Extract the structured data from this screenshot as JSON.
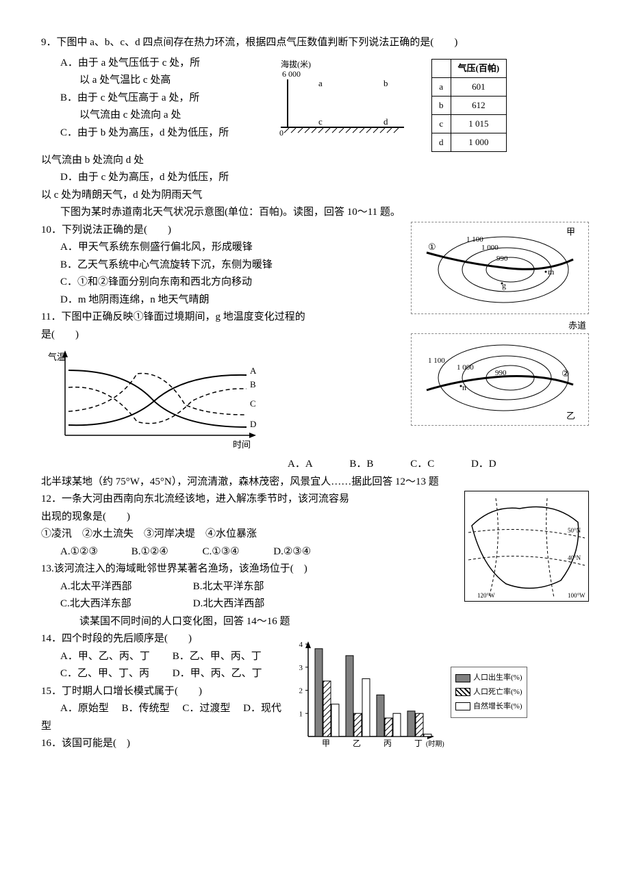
{
  "q9": {
    "stem": "9．下图中 a、b、c、d 四点间存在热力环流，根据四点气压数值判断下列说法正确的是(　　)",
    "A1": "A．由于 a 处气压低于 c 处，所",
    "A2": "以 a 处气温比 c 处高",
    "B1": "B．由于 c 处气压高于 a 处，所",
    "B2": "以气流由 c 处流向 a 处",
    "C1": "C．由于 b 处为高压，d 处为低压，所",
    "C2": "以气流由 b 处流向 d 处",
    "D1": "D．由于 c 处为高压，d 处为低压，所",
    "D2": "以 c 处为晴朗天气，d 处为阴雨天气",
    "diagram": {
      "ylabel": "海拔(米)",
      "ytick": "6 000",
      "zero": "0",
      "points": [
        "a",
        "b",
        "c",
        "d"
      ]
    },
    "table": {
      "header": [
        "",
        "气压(百帕)"
      ],
      "rows": [
        [
          "a",
          "601"
        ],
        [
          "b",
          "612"
        ],
        [
          "c",
          "1 015"
        ],
        [
          "d",
          "1 000"
        ]
      ]
    }
  },
  "intro1011": "下图为某时赤道南北天气状况示意图(单位：百帕)。读图，回答 10～11 题。",
  "q10": {
    "stem": "10．下列说法正确的是(　　)",
    "A": "A．甲天气系统东侧盛行偏北风，形成暖锋",
    "B": "B．乙天气系统中心气流旋转下沉，东侧为暖锋",
    "C": "C．①和②锋面分别向东南和西北方向移动",
    "D": "D．m 地阴雨连绵，n 地天气晴朗"
  },
  "q11": {
    "stem1": "11．下图中正确反映①锋面过境期间，g 地温度变化过程的",
    "stem2": "是(　　)",
    "opts": {
      "A": "A．A",
      "B": "B．B",
      "C": "C．C",
      "D": "D．D"
    }
  },
  "weatherFig": {
    "top": {
      "label": "甲",
      "isobars": [
        "1 100",
        "1 000",
        "990"
      ],
      "pts": [
        "①",
        "g",
        "m"
      ]
    },
    "bot": {
      "label": "乙",
      "isobars": [
        "1 100",
        "1 000",
        "990"
      ],
      "pts": [
        "②",
        "n"
      ],
      "equator": "赤道"
    }
  },
  "tempFig": {
    "ylabel": "气温",
    "xlabel": "时间",
    "series": [
      "A",
      "B",
      "C",
      "D"
    ]
  },
  "intro1213": "北半球某地（约 75°W，45°N），河流清澈，森林茂密，风景宜人……据此回答 12～13 题",
  "q12": {
    "stem1": "12．一条大河由西南向东北流经该地，进入解冻季节时，该河流容易",
    "stem2": "出现的现象是(　　)",
    "choices": "①凌汛　②水土流失　③河岸决堤　④水位暴涨",
    "opts": {
      "A": "A.①②③",
      "B": "B.①②④",
      "C": "C.①③④",
      "D": "D.②③④"
    }
  },
  "q13": {
    "stem": "13.该河流注入的海域毗邻世界某著名渔场，该渔场位于(　)",
    "A": "A.北太平洋西部",
    "B": "B.北太平洋东部",
    "C": "C.北大西洋东部",
    "D": "D.北大西洋西部"
  },
  "mapFig": {
    "labels": [
      "50°N",
      "40°N",
      "120°W",
      "100°W"
    ]
  },
  "intro1416": "读某国不同时间的人口变化图，回答 14～16 题",
  "q14": {
    "stem": "14．四个时段的先后顺序是(　　)",
    "A": "A．甲、乙、丙、丁",
    "B": "B．乙、甲、丙、丁",
    "C": "C．乙、甲、丁、丙",
    "D": "D．甲、丙、乙、丁"
  },
  "q15": {
    "stem": "15．丁时期人口增长模式属于(　　)",
    "A": "A．原始型",
    "B": "B．传统型",
    "C": "C．过渡型",
    "D": "D．现代",
    "tail": "型"
  },
  "q16": {
    "stem": "16．该国可能是(　)"
  },
  "barFig": {
    "ylabel_ticks": [
      "4",
      "3",
      "2",
      "1"
    ],
    "xcats": [
      "甲",
      "乙",
      "丙",
      "丁"
    ],
    "xunit": "(时期)",
    "legend": [
      "人口出生率(%)",
      "人口死亡率(%)",
      "自然增长率(%)"
    ],
    "series": {
      "birth": [
        3.8,
        3.5,
        1.8,
        1.1
      ],
      "death": [
        2.4,
        1.0,
        0.8,
        1.0
      ],
      "growth": [
        1.4,
        2.5,
        1.0,
        0.1
      ]
    },
    "colors": {
      "birth_fill": "#808080",
      "death_pattern": "hatch",
      "growth_fill": "#ffffff"
    }
  }
}
